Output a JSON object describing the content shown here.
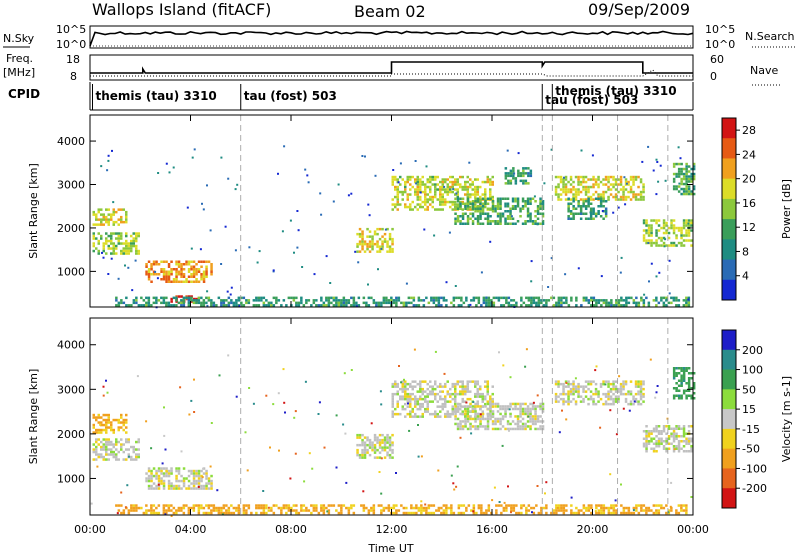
{
  "header": {
    "station": "Wallops Island (fitACF)",
    "beam": "Beam 02",
    "date": "09/Sep/2009"
  },
  "strip_labels": {
    "nsky": "N.Sky",
    "nsky_ticks": [
      "10^5",
      "10^0"
    ],
    "nsearch": "N.Search",
    "nsearch_ticks": [
      "10^5",
      "10^0"
    ],
    "freq": "Freq.",
    "freq_unit": "[MHz]",
    "freq_ticks": [
      "18",
      "8"
    ],
    "nave": "Nave",
    "nave_ticks": [
      "60",
      "0"
    ],
    "cpid": "CPID"
  },
  "cpid_segments": [
    {
      "label": "themis (tau) 3310",
      "start_h": 0.1
    },
    {
      "label": "tau (fost) 503",
      "start_h": 6.0
    },
    {
      "label": "tau (fost) 503",
      "start_h": 18.0
    },
    {
      "label": "themis (tau) 3310",
      "start_h": 18.4
    }
  ],
  "x_axis": {
    "title": "Time UT",
    "ticks": [
      "00:00",
      "04:00",
      "08:00",
      "12:00",
      "16:00",
      "20:00",
      "00:00"
    ]
  },
  "colors": {
    "power": [
      "#1428d2",
      "#2a6bb5",
      "#1e8c82",
      "#3a9e5a",
      "#8cc83c",
      "#dcdc28",
      "#f0a01e",
      "#e65a14",
      "#d21414"
    ],
    "velocity": [
      "#1e1ec8",
      "#2a8c8c",
      "#3aa050",
      "#8cdc3c",
      "#c8c8c8",
      "#f0d21e",
      "#f0a01e",
      "#e6641e",
      "#d21414"
    ],
    "grey": "#c0c0c0"
  },
  "chart_data": [
    {
      "type": "heatmap",
      "title": "",
      "xlabel": "Time UT",
      "ylabel": "Slant Range [km]",
      "xlim_hours": [
        0,
        24
      ],
      "ylim": [
        180,
        4600
      ],
      "y_ticks": [
        "1000",
        "2000",
        "3000",
        "4000"
      ],
      "colorbar_label": "Power [dB]",
      "colorbar_ticks": [
        "4",
        "8",
        "12",
        "16",
        "20",
        "24",
        "28"
      ],
      "colorbar_range": [
        0,
        30
      ],
      "echo_regions": [
        {
          "t0": 0.1,
          "t1": 1.4,
          "r0": 2050,
          "r1": 2450,
          "value": 18
        },
        {
          "t0": 0.1,
          "t1": 1.9,
          "r0": 1400,
          "r1": 1900,
          "value": 16
        },
        {
          "t0": 2.2,
          "t1": 4.8,
          "r0": 750,
          "r1": 1250,
          "value": 22
        },
        {
          "t0": 3.2,
          "t1": 4.2,
          "r0": 300,
          "r1": 450,
          "value": 28
        },
        {
          "t0": 1.0,
          "t1": 23.8,
          "r0": 220,
          "r1": 420,
          "value": 10
        },
        {
          "t0": 10.6,
          "t1": 12.0,
          "r0": 1450,
          "r1": 2000,
          "value": 18
        },
        {
          "t0": 12.0,
          "t1": 16.0,
          "r0": 2400,
          "r1": 3200,
          "value": 17
        },
        {
          "t0": 14.5,
          "t1": 18.0,
          "r0": 2100,
          "r1": 2700,
          "value": 12
        },
        {
          "t0": 16.5,
          "t1": 17.5,
          "r0": 3000,
          "r1": 3400,
          "value": 10
        },
        {
          "t0": 18.5,
          "t1": 22.0,
          "r0": 2650,
          "r1": 3200,
          "value": 18
        },
        {
          "t0": 19.0,
          "t1": 20.5,
          "r0": 2200,
          "r1": 2700,
          "value": 10
        },
        {
          "t0": 22.0,
          "t1": 23.9,
          "r0": 1600,
          "r1": 2200,
          "value": 16
        },
        {
          "t0": 23.2,
          "t1": 24.0,
          "r0": 2800,
          "r1": 3500,
          "value": 12
        }
      ]
    },
    {
      "type": "heatmap",
      "title": "",
      "xlabel": "Time UT",
      "ylabel": "Slant Range [km]",
      "xlim_hours": [
        0,
        24
      ],
      "ylim": [
        180,
        4600
      ],
      "y_ticks": [
        "1000",
        "2000",
        "3000",
        "4000"
      ],
      "colorbar_label": "Velocity [m s-1]",
      "colorbar_ticks": [
        "200",
        "100",
        "50",
        "15",
        "-15",
        "-50",
        "-100",
        "-200"
      ],
      "echo_regions": [
        {
          "t0": 0.1,
          "t1": 1.4,
          "r0": 2050,
          "r1": 2450,
          "value": -60
        },
        {
          "t0": 0.1,
          "t1": 1.9,
          "r0": 1400,
          "r1": 1900,
          "value": 0
        },
        {
          "t0": 2.2,
          "t1": 4.8,
          "r0": 750,
          "r1": 1250,
          "value": 0
        },
        {
          "t0": 1.0,
          "t1": 23.8,
          "r0": 220,
          "r1": 420,
          "value": -60
        },
        {
          "t0": 10.6,
          "t1": 12.0,
          "r0": 1450,
          "r1": 2000,
          "value": 0
        },
        {
          "t0": 12.0,
          "t1": 16.0,
          "r0": 2400,
          "r1": 3200,
          "value": 0
        },
        {
          "t0": 14.5,
          "t1": 18.0,
          "r0": 2100,
          "r1": 2700,
          "value": 0
        },
        {
          "t0": 18.5,
          "t1": 22.0,
          "r0": 2650,
          "r1": 3200,
          "value": 0
        },
        {
          "t0": 22.0,
          "t1": 23.9,
          "r0": 1600,
          "r1": 2200,
          "value": 0
        },
        {
          "t0": 23.2,
          "t1": 24.0,
          "r0": 2800,
          "r1": 3500,
          "value": 80
        }
      ]
    }
  ]
}
